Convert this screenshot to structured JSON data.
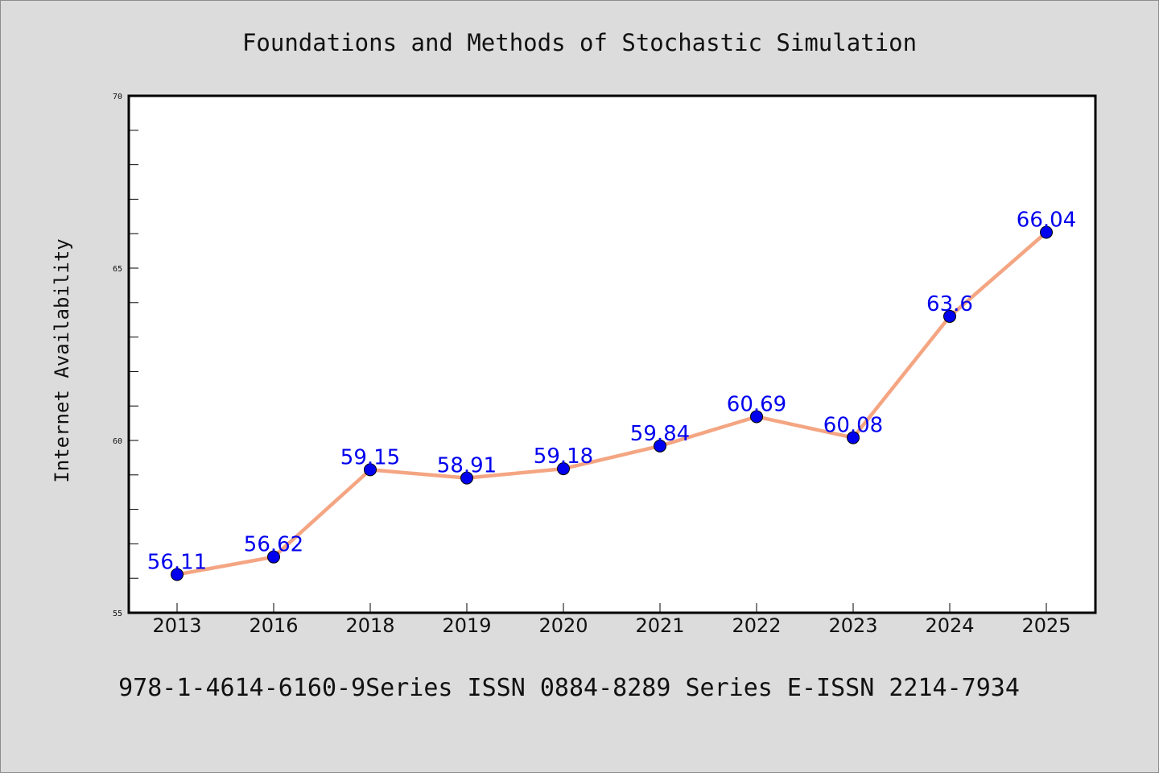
{
  "chart_data": {
    "type": "line",
    "title": "Foundations and Methods of Stochastic Simulation",
    "ylabel": "Internet Availability",
    "xlabel": "",
    "categories": [
      "2013",
      "2016",
      "2018",
      "2019",
      "2020",
      "2021",
      "2022",
      "2023",
      "2024",
      "2025"
    ],
    "values": [
      56.11,
      56.62,
      59.15,
      58.91,
      59.18,
      59.84,
      60.69,
      60.08,
      63.6,
      66.04
    ],
    "value_labels": [
      "56.11",
      "56.62",
      "59.15",
      "58.91",
      "59.18",
      "59.84",
      "60.69",
      "60.08",
      "63.6",
      "66.04"
    ],
    "ylim": [
      55,
      70
    ],
    "yticks": [
      "55",
      "60",
      "65",
      "70"
    ],
    "grid": false,
    "line_color": "#f4a582",
    "marker_color": "#0000ee",
    "label_color": "#0000ee"
  },
  "footer": {
    "text": "978-1-4614-6160-9Series ISSN 0884-8289 Series E-ISSN 2214-7934"
  }
}
